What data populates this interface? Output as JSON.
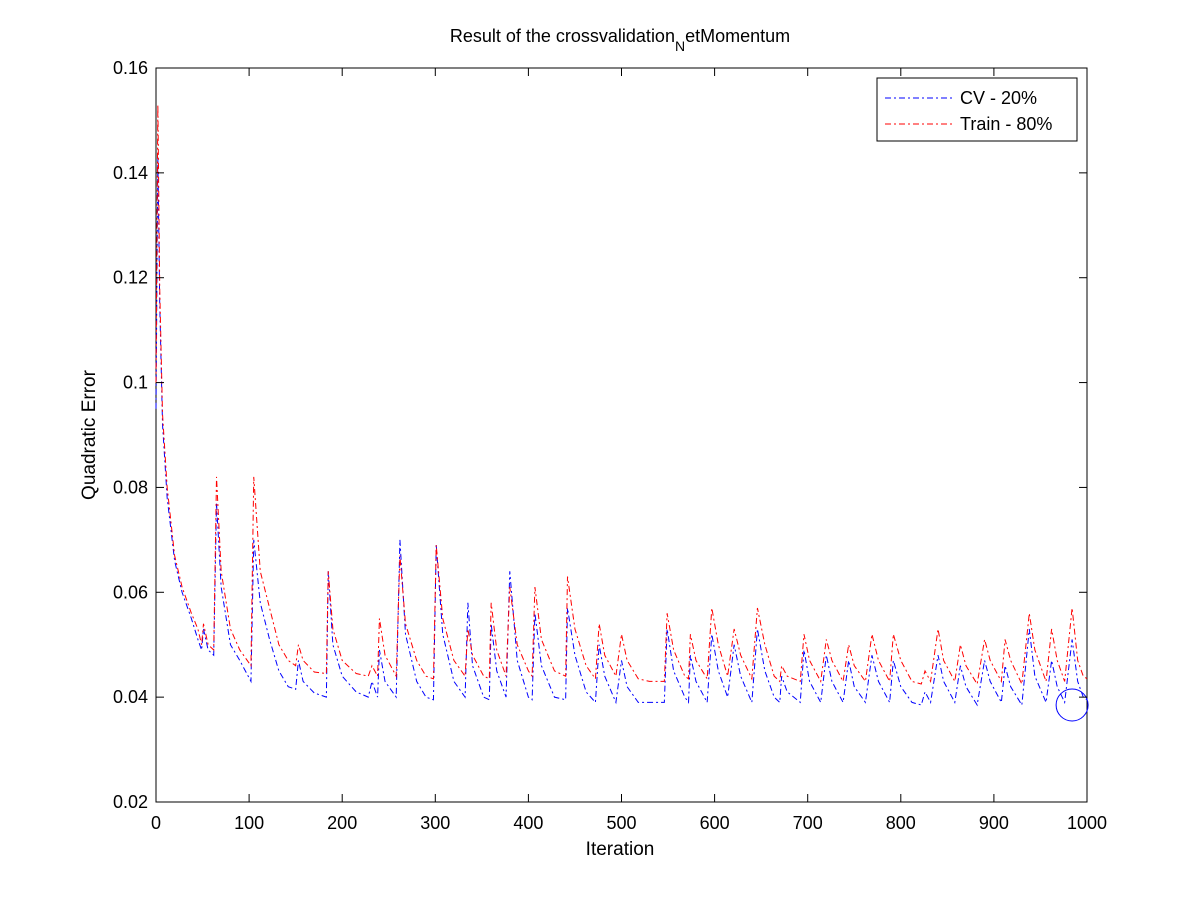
{
  "chart_data": {
    "type": "line",
    "title": "Result of the crossvalidation",
    "title_subscript": "N",
    "title_suffix": "etMomentum",
    "xlabel": "Iteration",
    "ylabel": "Quadratic Error",
    "xlim": [
      0,
      1000
    ],
    "ylim": [
      0.02,
      0.16
    ],
    "xticks": [
      0,
      100,
      200,
      300,
      400,
      500,
      600,
      700,
      800,
      900,
      1000
    ],
    "yticks": [
      0.02,
      0.04,
      0.06,
      0.08,
      0.1,
      0.12,
      0.14,
      0.16
    ],
    "ytick_labels": [
      "0.02",
      "0.04",
      "0.06",
      "0.08",
      "0.1",
      "0.12",
      "0.14",
      "0.16"
    ],
    "grid": false,
    "legend_position": "top-right",
    "series": [
      {
        "name": "CV - 20%",
        "color": "#0000ff",
        "line_style": "dash-dot",
        "points": [
          [
            0,
            0.095
          ],
          [
            2,
            0.143
          ],
          [
            4,
            0.115
          ],
          [
            7,
            0.092
          ],
          [
            12,
            0.078
          ],
          [
            20,
            0.066
          ],
          [
            28,
            0.06
          ],
          [
            38,
            0.055
          ],
          [
            45,
            0.051
          ],
          [
            49,
            0.049
          ],
          [
            51,
            0.053
          ],
          [
            56,
            0.049
          ],
          [
            62,
            0.048
          ],
          [
            65,
            0.077
          ],
          [
            70,
            0.061
          ],
          [
            80,
            0.05
          ],
          [
            90,
            0.047
          ],
          [
            102,
            0.043
          ],
          [
            105,
            0.07
          ],
          [
            112,
            0.058
          ],
          [
            122,
            0.051
          ],
          [
            132,
            0.045
          ],
          [
            142,
            0.042
          ],
          [
            150,
            0.0415
          ],
          [
            153,
            0.047
          ],
          [
            158,
            0.043
          ],
          [
            170,
            0.0408
          ],
          [
            183,
            0.04
          ],
          [
            185,
            0.064
          ],
          [
            190,
            0.05
          ],
          [
            200,
            0.044
          ],
          [
            215,
            0.041
          ],
          [
            228,
            0.04
          ],
          [
            232,
            0.043
          ],
          [
            238,
            0.04
          ],
          [
            240,
            0.049
          ],
          [
            246,
            0.043
          ],
          [
            258,
            0.04
          ],
          [
            262,
            0.07
          ],
          [
            268,
            0.052
          ],
          [
            280,
            0.043
          ],
          [
            290,
            0.04
          ],
          [
            298,
            0.0395
          ],
          [
            301,
            0.069
          ],
          [
            308,
            0.052
          ],
          [
            320,
            0.043
          ],
          [
            332,
            0.04
          ],
          [
            335,
            0.058
          ],
          [
            340,
            0.046
          ],
          [
            352,
            0.04
          ],
          [
            358,
            0.0395
          ],
          [
            360,
            0.054
          ],
          [
            366,
            0.045
          ],
          [
            376,
            0.04
          ],
          [
            380,
            0.064
          ],
          [
            388,
            0.047
          ],
          [
            400,
            0.04
          ],
          [
            404,
            0.0395
          ],
          [
            407,
            0.056
          ],
          [
            414,
            0.046
          ],
          [
            428,
            0.04
          ],
          [
            440,
            0.0395
          ],
          [
            442,
            0.057
          ],
          [
            450,
            0.048
          ],
          [
            462,
            0.041
          ],
          [
            472,
            0.039
          ],
          [
            476,
            0.05
          ],
          [
            482,
            0.044
          ],
          [
            494,
            0.039
          ],
          [
            500,
            0.047
          ],
          [
            506,
            0.042
          ],
          [
            518,
            0.039
          ],
          [
            530,
            0.039
          ],
          [
            546,
            0.039
          ],
          [
            549,
            0.053
          ],
          [
            556,
            0.045
          ],
          [
            568,
            0.04
          ],
          [
            572,
            0.039
          ],
          [
            574,
            0.048
          ],
          [
            580,
            0.043
          ],
          [
            592,
            0.039
          ],
          [
            597,
            0.052
          ],
          [
            604,
            0.045
          ],
          [
            614,
            0.04
          ],
          [
            621,
            0.05
          ],
          [
            628,
            0.044
          ],
          [
            640,
            0.039
          ],
          [
            646,
            0.053
          ],
          [
            654,
            0.045
          ],
          [
            664,
            0.04
          ],
          [
            670,
            0.039
          ],
          [
            672,
            0.044
          ],
          [
            678,
            0.041
          ],
          [
            692,
            0.039
          ],
          [
            696,
            0.049
          ],
          [
            702,
            0.043
          ],
          [
            714,
            0.039
          ],
          [
            720,
            0.048
          ],
          [
            726,
            0.043
          ],
          [
            738,
            0.039
          ],
          [
            744,
            0.047
          ],
          [
            750,
            0.042
          ],
          [
            762,
            0.039
          ],
          [
            769,
            0.048
          ],
          [
            776,
            0.043
          ],
          [
            788,
            0.039
          ],
          [
            792,
            0.047
          ],
          [
            800,
            0.042
          ],
          [
            812,
            0.039
          ],
          [
            822,
            0.0385
          ],
          [
            826,
            0.041
          ],
          [
            832,
            0.039
          ],
          [
            840,
            0.048
          ],
          [
            846,
            0.043
          ],
          [
            858,
            0.039
          ],
          [
            864,
            0.046
          ],
          [
            870,
            0.042
          ],
          [
            882,
            0.0385
          ],
          [
            890,
            0.047
          ],
          [
            896,
            0.043
          ],
          [
            908,
            0.039
          ],
          [
            912,
            0.046
          ],
          [
            918,
            0.042
          ],
          [
            930,
            0.0385
          ],
          [
            938,
            0.053
          ],
          [
            944,
            0.044
          ],
          [
            956,
            0.039
          ],
          [
            962,
            0.047
          ],
          [
            968,
            0.042
          ],
          [
            976,
            0.039
          ],
          [
            984,
            0.051
          ],
          [
            990,
            0.043
          ],
          [
            996,
            0.04
          ],
          [
            1000,
            0.0395
          ]
        ]
      },
      {
        "name": "Train - 80%",
        "color": "#ff0000",
        "line_style": "dash-dot",
        "points": [
          [
            0,
            0.1
          ],
          [
            2,
            0.153
          ],
          [
            4,
            0.118
          ],
          [
            7,
            0.094
          ],
          [
            12,
            0.08
          ],
          [
            20,
            0.067
          ],
          [
            28,
            0.061
          ],
          [
            38,
            0.056
          ],
          [
            45,
            0.053
          ],
          [
            49,
            0.05
          ],
          [
            51,
            0.054
          ],
          [
            56,
            0.05
          ],
          [
            62,
            0.049
          ],
          [
            65,
            0.082
          ],
          [
            70,
            0.064
          ],
          [
            80,
            0.053
          ],
          [
            90,
            0.049
          ],
          [
            102,
            0.046
          ],
          [
            105,
            0.082
          ],
          [
            112,
            0.064
          ],
          [
            122,
            0.057
          ],
          [
            132,
            0.05
          ],
          [
            142,
            0.047
          ],
          [
            150,
            0.046
          ],
          [
            153,
            0.05
          ],
          [
            158,
            0.047
          ],
          [
            170,
            0.0448
          ],
          [
            183,
            0.0445
          ],
          [
            185,
            0.064
          ],
          [
            190,
            0.053
          ],
          [
            200,
            0.047
          ],
          [
            215,
            0.0445
          ],
          [
            228,
            0.044
          ],
          [
            232,
            0.046
          ],
          [
            238,
            0.044
          ],
          [
            240,
            0.055
          ],
          [
            246,
            0.048
          ],
          [
            258,
            0.044
          ],
          [
            262,
            0.067
          ],
          [
            268,
            0.054
          ],
          [
            280,
            0.047
          ],
          [
            290,
            0.044
          ],
          [
            298,
            0.0435
          ],
          [
            301,
            0.069
          ],
          [
            308,
            0.055
          ],
          [
            320,
            0.047
          ],
          [
            332,
            0.044
          ],
          [
            335,
            0.053
          ],
          [
            340,
            0.048
          ],
          [
            352,
            0.044
          ],
          [
            358,
            0.0435
          ],
          [
            360,
            0.058
          ],
          [
            366,
            0.049
          ],
          [
            376,
            0.044
          ],
          [
            380,
            0.061
          ],
          [
            388,
            0.05
          ],
          [
            400,
            0.045
          ],
          [
            404,
            0.044
          ],
          [
            407,
            0.061
          ],
          [
            414,
            0.051
          ],
          [
            428,
            0.045
          ],
          [
            440,
            0.044
          ],
          [
            442,
            0.063
          ],
          [
            450,
            0.053
          ],
          [
            462,
            0.046
          ],
          [
            472,
            0.0435
          ],
          [
            476,
            0.054
          ],
          [
            482,
            0.048
          ],
          [
            494,
            0.044
          ],
          [
            500,
            0.052
          ],
          [
            506,
            0.047
          ],
          [
            518,
            0.0435
          ],
          [
            530,
            0.043
          ],
          [
            546,
            0.043
          ],
          [
            549,
            0.056
          ],
          [
            556,
            0.049
          ],
          [
            568,
            0.044
          ],
          [
            572,
            0.0435
          ],
          [
            574,
            0.052
          ],
          [
            580,
            0.047
          ],
          [
            592,
            0.0435
          ],
          [
            597,
            0.057
          ],
          [
            604,
            0.05
          ],
          [
            614,
            0.044
          ],
          [
            621,
            0.053
          ],
          [
            628,
            0.048
          ],
          [
            640,
            0.0435
          ],
          [
            646,
            0.057
          ],
          [
            654,
            0.05
          ],
          [
            664,
            0.044
          ],
          [
            670,
            0.043
          ],
          [
            672,
            0.046
          ],
          [
            678,
            0.044
          ],
          [
            692,
            0.043
          ],
          [
            696,
            0.052
          ],
          [
            702,
            0.047
          ],
          [
            714,
            0.043
          ],
          [
            720,
            0.051
          ],
          [
            726,
            0.047
          ],
          [
            738,
            0.043
          ],
          [
            744,
            0.05
          ],
          [
            750,
            0.046
          ],
          [
            762,
            0.043
          ],
          [
            769,
            0.052
          ],
          [
            776,
            0.047
          ],
          [
            788,
            0.043
          ],
          [
            792,
            0.052
          ],
          [
            800,
            0.047
          ],
          [
            812,
            0.043
          ],
          [
            822,
            0.0425
          ],
          [
            826,
            0.045
          ],
          [
            832,
            0.043
          ],
          [
            840,
            0.053
          ],
          [
            846,
            0.047
          ],
          [
            858,
            0.043
          ],
          [
            864,
            0.05
          ],
          [
            870,
            0.046
          ],
          [
            882,
            0.0425
          ],
          [
            890,
            0.051
          ],
          [
            896,
            0.047
          ],
          [
            908,
            0.043
          ],
          [
            912,
            0.051
          ],
          [
            918,
            0.047
          ],
          [
            930,
            0.0425
          ],
          [
            938,
            0.056
          ],
          [
            944,
            0.049
          ],
          [
            956,
            0.043
          ],
          [
            962,
            0.053
          ],
          [
            968,
            0.047
          ],
          [
            976,
            0.043
          ],
          [
            984,
            0.057
          ],
          [
            990,
            0.047
          ],
          [
            996,
            0.044
          ],
          [
            1000,
            0.0435
          ]
        ]
      }
    ],
    "annotations": [
      {
        "type": "circle-marker",
        "color": "#0000ff",
        "x": 984,
        "y": 0.0385
      }
    ]
  }
}
